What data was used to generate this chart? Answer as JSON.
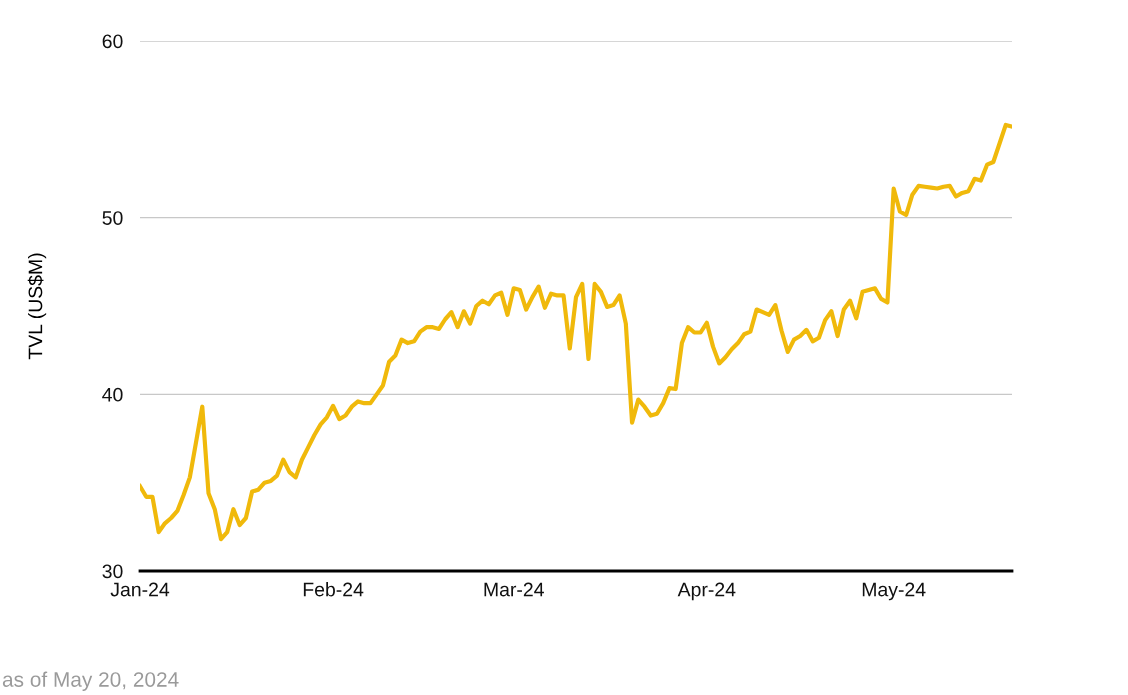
{
  "chart_data": {
    "type": "line",
    "ylabel": "TVL (US$M)",
    "annotations": [
      "as of May 20, 2024"
    ],
    "xlim": [
      "2024-01-01",
      "2024-05-20"
    ],
    "xticks": [
      {
        "value": "2024-01-01",
        "label": "Jan-24"
      },
      {
        "value": "2024-02-01",
        "label": "Feb-24"
      },
      {
        "value": "2024-03-01",
        "label": "Mar-24"
      },
      {
        "value": "2024-04-01",
        "label": "Apr-24"
      },
      {
        "value": "2024-05-01",
        "label": "May-24"
      }
    ],
    "ylim": [
      30,
      60
    ],
    "yticks": [
      30,
      40,
      50,
      60
    ],
    "grid": "y",
    "marker": "none",
    "line_style": "solid",
    "x": [
      "2024-01-01",
      "2024-01-02",
      "2024-01-03",
      "2024-01-04",
      "2024-01-05",
      "2024-01-06",
      "2024-01-07",
      "2024-01-08",
      "2024-01-09",
      "2024-01-10",
      "2024-01-11",
      "2024-01-12",
      "2024-01-13",
      "2024-01-14",
      "2024-01-15",
      "2024-01-16",
      "2024-01-17",
      "2024-01-18",
      "2024-01-19",
      "2024-01-20",
      "2024-01-21",
      "2024-01-22",
      "2024-01-23",
      "2024-01-24",
      "2024-01-25",
      "2024-01-26",
      "2024-01-27",
      "2024-01-28",
      "2024-01-29",
      "2024-01-30",
      "2024-01-31",
      "2024-02-01",
      "2024-02-02",
      "2024-02-03",
      "2024-02-04",
      "2024-02-05",
      "2024-02-06",
      "2024-02-07",
      "2024-02-08",
      "2024-02-09",
      "2024-02-10",
      "2024-02-11",
      "2024-02-12",
      "2024-02-13",
      "2024-02-14",
      "2024-02-15",
      "2024-02-16",
      "2024-02-17",
      "2024-02-18",
      "2024-02-19",
      "2024-02-20",
      "2024-02-21",
      "2024-02-22",
      "2024-02-23",
      "2024-02-24",
      "2024-02-25",
      "2024-02-26",
      "2024-02-27",
      "2024-02-28",
      "2024-02-29",
      "2024-03-01",
      "2024-03-02",
      "2024-03-03",
      "2024-03-04",
      "2024-03-05",
      "2024-03-06",
      "2024-03-07",
      "2024-03-08",
      "2024-03-09",
      "2024-03-10",
      "2024-03-11",
      "2024-03-12",
      "2024-03-13",
      "2024-03-14",
      "2024-03-15",
      "2024-03-16",
      "2024-03-17",
      "2024-03-18",
      "2024-03-19",
      "2024-03-20",
      "2024-03-21",
      "2024-03-22",
      "2024-03-23",
      "2024-03-24",
      "2024-03-25",
      "2024-03-26",
      "2024-03-27",
      "2024-03-28",
      "2024-03-29",
      "2024-03-30",
      "2024-03-31",
      "2024-04-01",
      "2024-04-02",
      "2024-04-03",
      "2024-04-04",
      "2024-04-05",
      "2024-04-06",
      "2024-04-07",
      "2024-04-08",
      "2024-04-09",
      "2024-04-10",
      "2024-04-11",
      "2024-04-12",
      "2024-04-13",
      "2024-04-14",
      "2024-04-15",
      "2024-04-16",
      "2024-04-17",
      "2024-04-18",
      "2024-04-19",
      "2024-04-20",
      "2024-04-21",
      "2024-04-22",
      "2024-04-23",
      "2024-04-24",
      "2024-04-25",
      "2024-04-26",
      "2024-04-27",
      "2024-04-28",
      "2024-04-29",
      "2024-04-30",
      "2024-05-01",
      "2024-05-02",
      "2024-05-03",
      "2024-05-04",
      "2024-05-05",
      "2024-05-06",
      "2024-05-07",
      "2024-05-08",
      "2024-05-09",
      "2024-05-10",
      "2024-05-11",
      "2024-05-12",
      "2024-05-13",
      "2024-05-14",
      "2024-05-15",
      "2024-05-16",
      "2024-05-17",
      "2024-05-18",
      "2024-05-19",
      "2024-05-20"
    ],
    "series": [
      {
        "color": "#f0b90b",
        "values": [
          34.8,
          34.2,
          34.2,
          32.2,
          32.7,
          33.0,
          33.4,
          34.3,
          35.3,
          37.3,
          39.3,
          34.4,
          33.5,
          31.8,
          32.2,
          33.5,
          32.6,
          33.0,
          34.5,
          34.6,
          35.0,
          35.1,
          35.4,
          36.3,
          35.6,
          35.3,
          36.3,
          37.0,
          37.7,
          38.3,
          38.7,
          39.35,
          38.6,
          38.8,
          39.3,
          39.6,
          39.5,
          39.5,
          40.0,
          40.5,
          41.85,
          42.2,
          43.1,
          42.9,
          43.0,
          43.55,
          43.8,
          43.8,
          43.7,
          44.25,
          44.65,
          43.8,
          44.7,
          44.0,
          45.0,
          45.3,
          45.1,
          45.6,
          45.75,
          44.5,
          46.0,
          45.9,
          44.8,
          45.5,
          46.1,
          44.9,
          45.7,
          45.6,
          45.6,
          42.6,
          45.5,
          46.25,
          42.0,
          46.25,
          45.8,
          44.95,
          45.05,
          45.6,
          44.0,
          38.4,
          39.7,
          39.3,
          38.8,
          38.9,
          39.5,
          40.35,
          40.3,
          42.9,
          43.8,
          43.5,
          43.5,
          44.05,
          42.7,
          41.75,
          42.1,
          42.55,
          42.9,
          43.4,
          43.55,
          44.8,
          44.65,
          44.5,
          45.05,
          43.6,
          42.4,
          43.1,
          43.3,
          43.65,
          43.0,
          43.2,
          44.2,
          44.7,
          43.3,
          44.8,
          45.3,
          44.3,
          45.8,
          45.9,
          46.0,
          45.4,
          45.2,
          51.65,
          50.35,
          50.15,
          51.3,
          51.8,
          51.75,
          51.7,
          51.65,
          51.75,
          51.8,
          51.2,
          51.4,
          51.5,
          52.2,
          52.1,
          53.0,
          53.15,
          54.2,
          55.25,
          55.15
        ]
      }
    ]
  }
}
